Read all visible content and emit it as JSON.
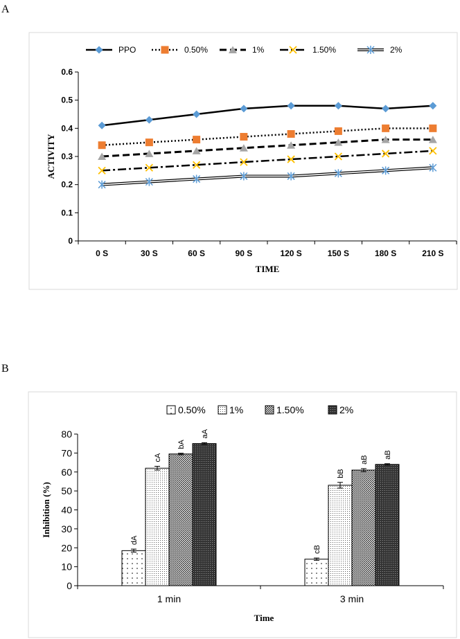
{
  "panels": {
    "a": "A",
    "b": "B"
  },
  "chart_data": [
    {
      "type": "line",
      "title": "",
      "xlabel": "TIME",
      "ylabel": "ACTIVITY",
      "categories": [
        "0 S",
        "30 S",
        "60 S",
        "90 S",
        "120 S",
        "150 S",
        "180 S",
        "210 S"
      ],
      "ylim": [
        0,
        0.6
      ],
      "yticks": [
        "0",
        "0.1",
        "0.2",
        "0.3",
        "0.4",
        "0.5",
        "0.6"
      ],
      "legend_position": "top",
      "grid": false,
      "series": [
        {
          "name": "PPO",
          "values": [
            0.41,
            0.43,
            0.45,
            0.47,
            0.48,
            0.48,
            0.47,
            0.48
          ],
          "color": "#5b9bd5",
          "marker": "diamond",
          "line": "solid"
        },
        {
          "name": "0.50%",
          "values": [
            0.34,
            0.35,
            0.36,
            0.37,
            0.38,
            0.39,
            0.4,
            0.4
          ],
          "color": "#ed7d31",
          "marker": "square",
          "line": "dotted"
        },
        {
          "name": "1%",
          "values": [
            0.3,
            0.31,
            0.32,
            0.33,
            0.34,
            0.35,
            0.36,
            0.36
          ],
          "color": "#a5a5a5",
          "marker": "triangle",
          "line": "dashed"
        },
        {
          "name": "1.50%",
          "values": [
            0.25,
            0.26,
            0.27,
            0.28,
            0.29,
            0.3,
            0.31,
            0.32
          ],
          "color": "#ffc000",
          "marker": "x",
          "line": "dash-dot"
        },
        {
          "name": "2%",
          "values": [
            0.2,
            0.21,
            0.22,
            0.23,
            0.23,
            0.24,
            0.25,
            0.26
          ],
          "color": "#5b9bd5",
          "marker": "star",
          "line": "double"
        }
      ]
    },
    {
      "type": "bar",
      "title": "",
      "xlabel": "Time",
      "ylabel": "Inhibition (%)",
      "categories": [
        "1 min",
        "3 min"
      ],
      "ylim": [
        0,
        80
      ],
      "yticks": [
        "0",
        "10",
        "20",
        "30",
        "40",
        "50",
        "60",
        "70",
        "80"
      ],
      "legend_position": "top",
      "grid": false,
      "series": [
        {
          "name": "0.50%",
          "values": [
            18.5,
            14
          ],
          "errors": [
            0.8,
            0.6
          ],
          "labels": [
            "dA",
            "cB"
          ],
          "pattern": "sparse-dots"
        },
        {
          "name": "1%",
          "values": [
            62,
            53
          ],
          "errors": [
            1.0,
            1.5
          ],
          "labels": [
            "cA",
            "bB"
          ],
          "pattern": "dense-dots"
        },
        {
          "name": "1.50%",
          "values": [
            69.5,
            61
          ],
          "errors": [
            0.4,
            0.8
          ],
          "labels": [
            "bA",
            "aB"
          ],
          "pattern": "checker"
        },
        {
          "name": "2%",
          "values": [
            75,
            64
          ],
          "errors": [
            0.5,
            0.4
          ],
          "labels": [
            "aA",
            "aB"
          ],
          "pattern": "dark-checker"
        }
      ]
    }
  ]
}
